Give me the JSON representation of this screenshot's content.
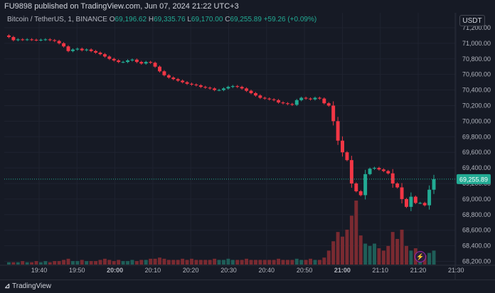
{
  "publish_line": "FU9898 published on TradingView.com, Jun 07, 2024 21:22 UTC+3",
  "legend": {
    "symbol": "Bitcoin / TetherUS, 1, BINANCE",
    "o_label": "O",
    "o_value": "69,196.62",
    "h_label": "H",
    "h_value": "69,335.76",
    "l_label": "L",
    "l_value": "69,170.00",
    "c_label": "C",
    "c_value": "69,255.89",
    "change": "+59.26 (+0.09%)"
  },
  "currency": "USDT",
  "footer_logo": "TradingView",
  "last_price_label": "69,255.89",
  "colors": {
    "up": "#22ab94",
    "down": "#f23645",
    "vol_up": "#1f5e58",
    "vol_down": "#7a2a31",
    "grid": "#1f2330",
    "axis_text": "#b2b5be"
  },
  "chart_data": {
    "type": "candlestick",
    "symbol": "Bitcoin / TetherUS",
    "interval": "1",
    "exchange": "BINANCE",
    "y_ticks": [
      "71,200.00",
      "71,000.00",
      "70,800.00",
      "70,600.00",
      "70,400.00",
      "70,200.00",
      "70,000.00",
      "69,800.00",
      "69,600.00",
      "69,400.00",
      "69,200.00",
      "69,000.00",
      "68,800.00",
      "68,600.00",
      "68,400.00",
      "68,200.00"
    ],
    "x_ticks": [
      "19:40",
      "19:50",
      "20:00",
      "20:10",
      "20:20",
      "20:30",
      "20:40",
      "20:50",
      "21:00",
      "21:10",
      "21:20",
      "21:30"
    ],
    "ylim": [
      68150,
      71300
    ],
    "last_price": 69255.89,
    "close_series": [
      71080,
      71040,
      71050,
      71045,
      71050,
      71045,
      71040,
      71045,
      71050,
      71040,
      71030,
      71000,
      70960,
      70900,
      70920,
      70930,
      70910,
      70920,
      70900,
      70880,
      70860,
      70830,
      70800,
      70780,
      70760,
      70760,
      70780,
      70790,
      70760,
      70740,
      70760,
      70750,
      70700,
      70640,
      70590,
      70560,
      70540,
      70520,
      70500,
      70480,
      70470,
      70460,
      70440,
      70430,
      70420,
      70400,
      70400,
      70420,
      70440,
      70450,
      70440,
      70420,
      70390,
      70360,
      70330,
      70300,
      70290,
      70280,
      70270,
      70240,
      70230,
      70220,
      70210,
      70270,
      70300,
      70290,
      70280,
      70300,
      70290,
      70230,
      70200,
      70000,
      69750,
      69600,
      69500,
      69200,
      69100,
      69050,
      69320,
      69390,
      69400,
      69380,
      69360,
      69330,
      69200,
      69150,
      69000,
      68900,
      69030,
      68950,
      68950,
      68920,
      69120,
      69256
    ],
    "volume_series": [
      2,
      2,
      2,
      3,
      2,
      2,
      3,
      2,
      3,
      2,
      3,
      3,
      4,
      5,
      3,
      3,
      4,
      3,
      3,
      3,
      4,
      5,
      4,
      3,
      4,
      3,
      3,
      4,
      3,
      4,
      4,
      5,
      5,
      6,
      5,
      4,
      4,
      4,
      5,
      4,
      5,
      4,
      4,
      4,
      4,
      5,
      4,
      4,
      5,
      4,
      4,
      4,
      5,
      4,
      4,
      4,
      4,
      4,
      4,
      5,
      4,
      4,
      4,
      5,
      4,
      4,
      5,
      4,
      4,
      6,
      12,
      20,
      28,
      24,
      30,
      42,
      55,
      25,
      18,
      16,
      18,
      14,
      12,
      16,
      28,
      22,
      30,
      16,
      12,
      14,
      10,
      8,
      10,
      12
    ]
  }
}
